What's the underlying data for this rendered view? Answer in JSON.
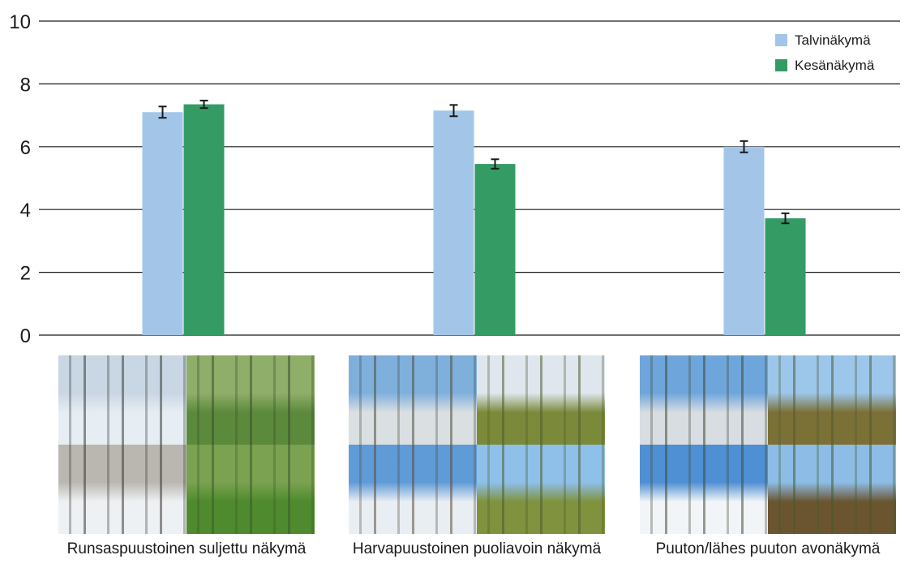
{
  "chart_data": {
    "type": "bar",
    "categories": [
      "Runsaspuustoinen suljettu näkymä",
      "Harvapuustoinen puoliavoin näkymä",
      "Puuton/lähes puuton avonäkymä"
    ],
    "series": [
      {
        "name": "Talvinäkymä",
        "values": [
          7.1,
          7.15,
          6.0
        ],
        "errors": [
          0.18,
          0.18,
          0.18
        ],
        "color": "#a3c6e8"
      },
      {
        "name": "Kesänäkymä",
        "values": [
          7.35,
          5.45,
          3.72
        ],
        "errors": [
          0.12,
          0.15,
          0.16
        ],
        "color": "#359b64"
      }
    ],
    "ylim": [
      0,
      10
    ],
    "yticks": [
      0,
      2,
      4,
      6,
      8,
      10
    ],
    "grid": true,
    "legend": "top-right"
  },
  "photos": [
    {
      "caption": "Runsaspuustoinen suljettu näkymä",
      "tiles": [
        {
          "scene": "snowy-dense-forest",
          "sky": "#c9d6e3",
          "ground": "#e6edf3",
          "trees": "#2f3a33"
        },
        {
          "scene": "summer-dense-forest",
          "sky": "#8fae6a",
          "ground": "#5c8a3c",
          "trees": "#3b4a2c"
        },
        {
          "scene": "snowy-forest-trunks",
          "sky": "#b9b7b0",
          "ground": "#eef1f4",
          "trees": "#3a3530"
        },
        {
          "scene": "summer-forest-undergrowth",
          "sky": "#7aa250",
          "ground": "#4f8a2e",
          "trees": "#3c5530"
        }
      ]
    },
    {
      "caption": "Harvapuustoinen puoliavoin näkymä",
      "tiles": [
        {
          "scene": "winter-sparse-pines",
          "sky": "#7fb0dc",
          "ground": "#dadfe2",
          "trees": "#4a4a3a"
        },
        {
          "scene": "summer-sparse-bog",
          "sky": "#dfe6ee",
          "ground": "#7a8a3a",
          "trees": "#4d5a2c"
        },
        {
          "scene": "winter-pines-shadows",
          "sky": "#5f9bd6",
          "ground": "#e9eef3",
          "trees": "#5a4a38"
        },
        {
          "scene": "summer-sparse-pines",
          "sky": "#8ec0ea",
          "ground": "#80923e",
          "trees": "#4a5a2e"
        }
      ]
    },
    {
      "caption": "Puuton/lähes puuton avonäkymä",
      "tiles": [
        {
          "scene": "winter-open-clearing",
          "sky": "#6ea6db",
          "ground": "#d8dde2",
          "trees": "#3d4636"
        },
        {
          "scene": "summer-clearcut",
          "sky": "#9cc6ea",
          "ground": "#7b7036",
          "trees": "#4f5a30"
        },
        {
          "scene": "winter-open-field",
          "sky": "#4f8fd3",
          "ground": "#f2f5f8",
          "trees": "#3a4a34"
        },
        {
          "scene": "summer-logging-slash",
          "sky": "#8dbde6",
          "ground": "#6b5530",
          "trees": "#3e5a2e"
        }
      ]
    }
  ]
}
